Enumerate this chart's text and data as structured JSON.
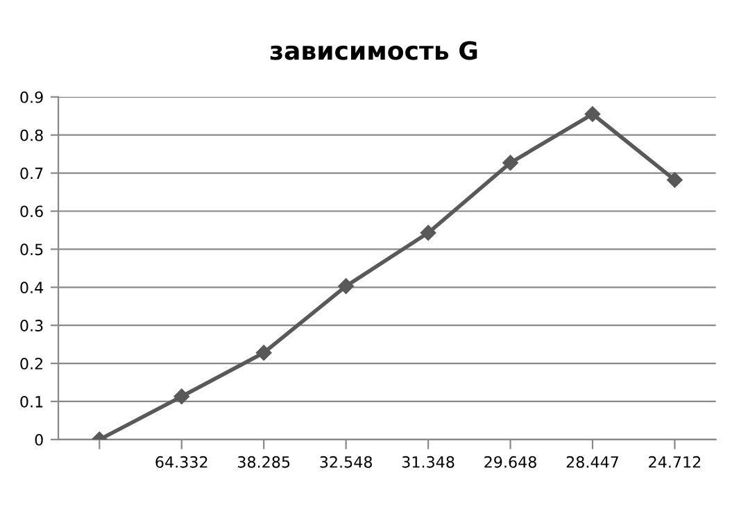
{
  "chart_data": {
    "type": "line",
    "title": "зависимость G",
    "categories": [
      null,
      "64.332",
      "38.285",
      "32.548",
      "31.348",
      "29.648",
      "28.447",
      "24.712"
    ],
    "series": [
      {
        "color": "#595959",
        "values": [
          0,
          0.113,
          0.228,
          0.403,
          0.543,
          0.727,
          0.855,
          0.682
        ]
      }
    ],
    "ylim": [
      0,
      0.9
    ],
    "yticks": [
      0,
      0.1,
      0.2,
      0.3,
      0.4,
      0.5,
      0.6,
      0.7,
      0.8,
      0.9
    ],
    "grid": "y",
    "marker": "diamond",
    "line_style": "solid"
  }
}
